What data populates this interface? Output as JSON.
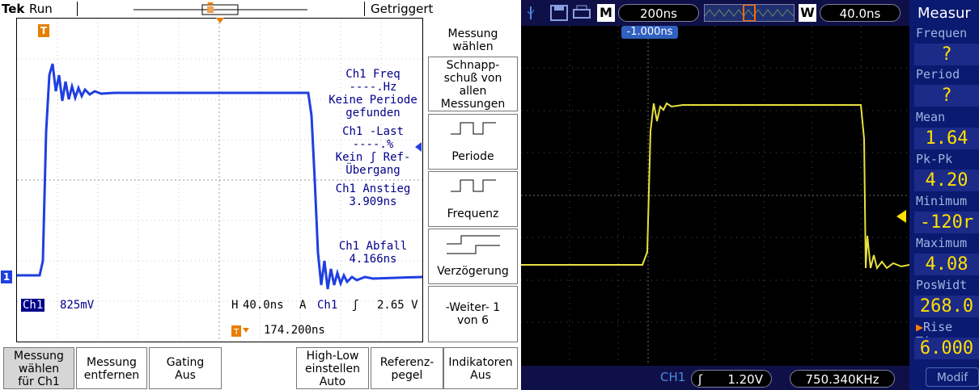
{
  "tek": {
    "brand": "Tek",
    "run_state": "Run",
    "trigger_status": "Getriggert",
    "trigger_marker": "T",
    "channel_marker": "1",
    "measurements": [
      {
        "lines": [
          "Ch1 Freq",
          "----.Hz",
          "Keine Periode",
          "gefunden"
        ]
      },
      {
        "lines": [
          "Ch1 -Last",
          "----.%",
          "Kein ʃ Ref-",
          "Übergang"
        ]
      },
      {
        "lines": [
          "Ch1 Anstieg",
          "3.909ns"
        ]
      },
      {
        "lines": [
          "Ch1 Abfall",
          "4.166ns"
        ]
      }
    ],
    "side_menu": {
      "title": "Messung wählen",
      "snapshot": "Schnapp- schuß von allen Messungen",
      "periode": "Periode",
      "frequenz": "Frequenz",
      "verzoegerung": "Verzögerung",
      "weiter": "-Weiter- 1 von 6"
    },
    "readouts": {
      "ch_label": "Ch1",
      "ch_scale": "825mV",
      "h_label": "H",
      "h_scale": "40.0ns",
      "trig_source_prefix": "A",
      "trig_source": "Ch1",
      "trig_slope": "ʃ",
      "trig_level": "2.65 V",
      "trig_pos": "174.200ns"
    },
    "bottom_menu": [
      {
        "lines": [
          "Messung",
          "wählen",
          "für Ch1"
        ]
      },
      {
        "lines": [
          "Messung",
          "entfernen"
        ]
      },
      {
        "lines": [
          "Gating",
          "Aus"
        ]
      },
      {
        "lines": [
          "High-Low",
          "einstellen",
          "Auto"
        ]
      },
      {
        "lines": [
          "Referenz-",
          "pegel"
        ]
      },
      {
        "lines": [
          "Indikatoren",
          "Aus"
        ]
      }
    ]
  },
  "rigol": {
    "mode_letter": "M",
    "timebase": "200ns",
    "window_letter": "W",
    "window_scale": "40.0ns",
    "trig_offset": "-1.000ns",
    "ch_label": "CH1",
    "trig_level": "1.20V",
    "freq_readout": "750.340KHz",
    "panel_title": "Measur",
    "panel_items": [
      {
        "label": "Frequen",
        "value": "?"
      },
      {
        "label": "Period",
        "value": "?"
      },
      {
        "label": "Mean",
        "value": "1.64"
      },
      {
        "label": "Pk-Pk",
        "value": "4.20"
      },
      {
        "label": "Minimum",
        "value": "-120r"
      },
      {
        "label": "Maximum",
        "value": "4.08"
      },
      {
        "label": "PosWidt",
        "value": "268.0"
      },
      {
        "label": "Rise Tin",
        "value": "6.000"
      }
    ],
    "modify_label": "Modif",
    "colors": {
      "tek_trace": "#1f3fe0",
      "rigol_trace": "#e8e040",
      "panel_bg": "#0a1a70"
    }
  }
}
